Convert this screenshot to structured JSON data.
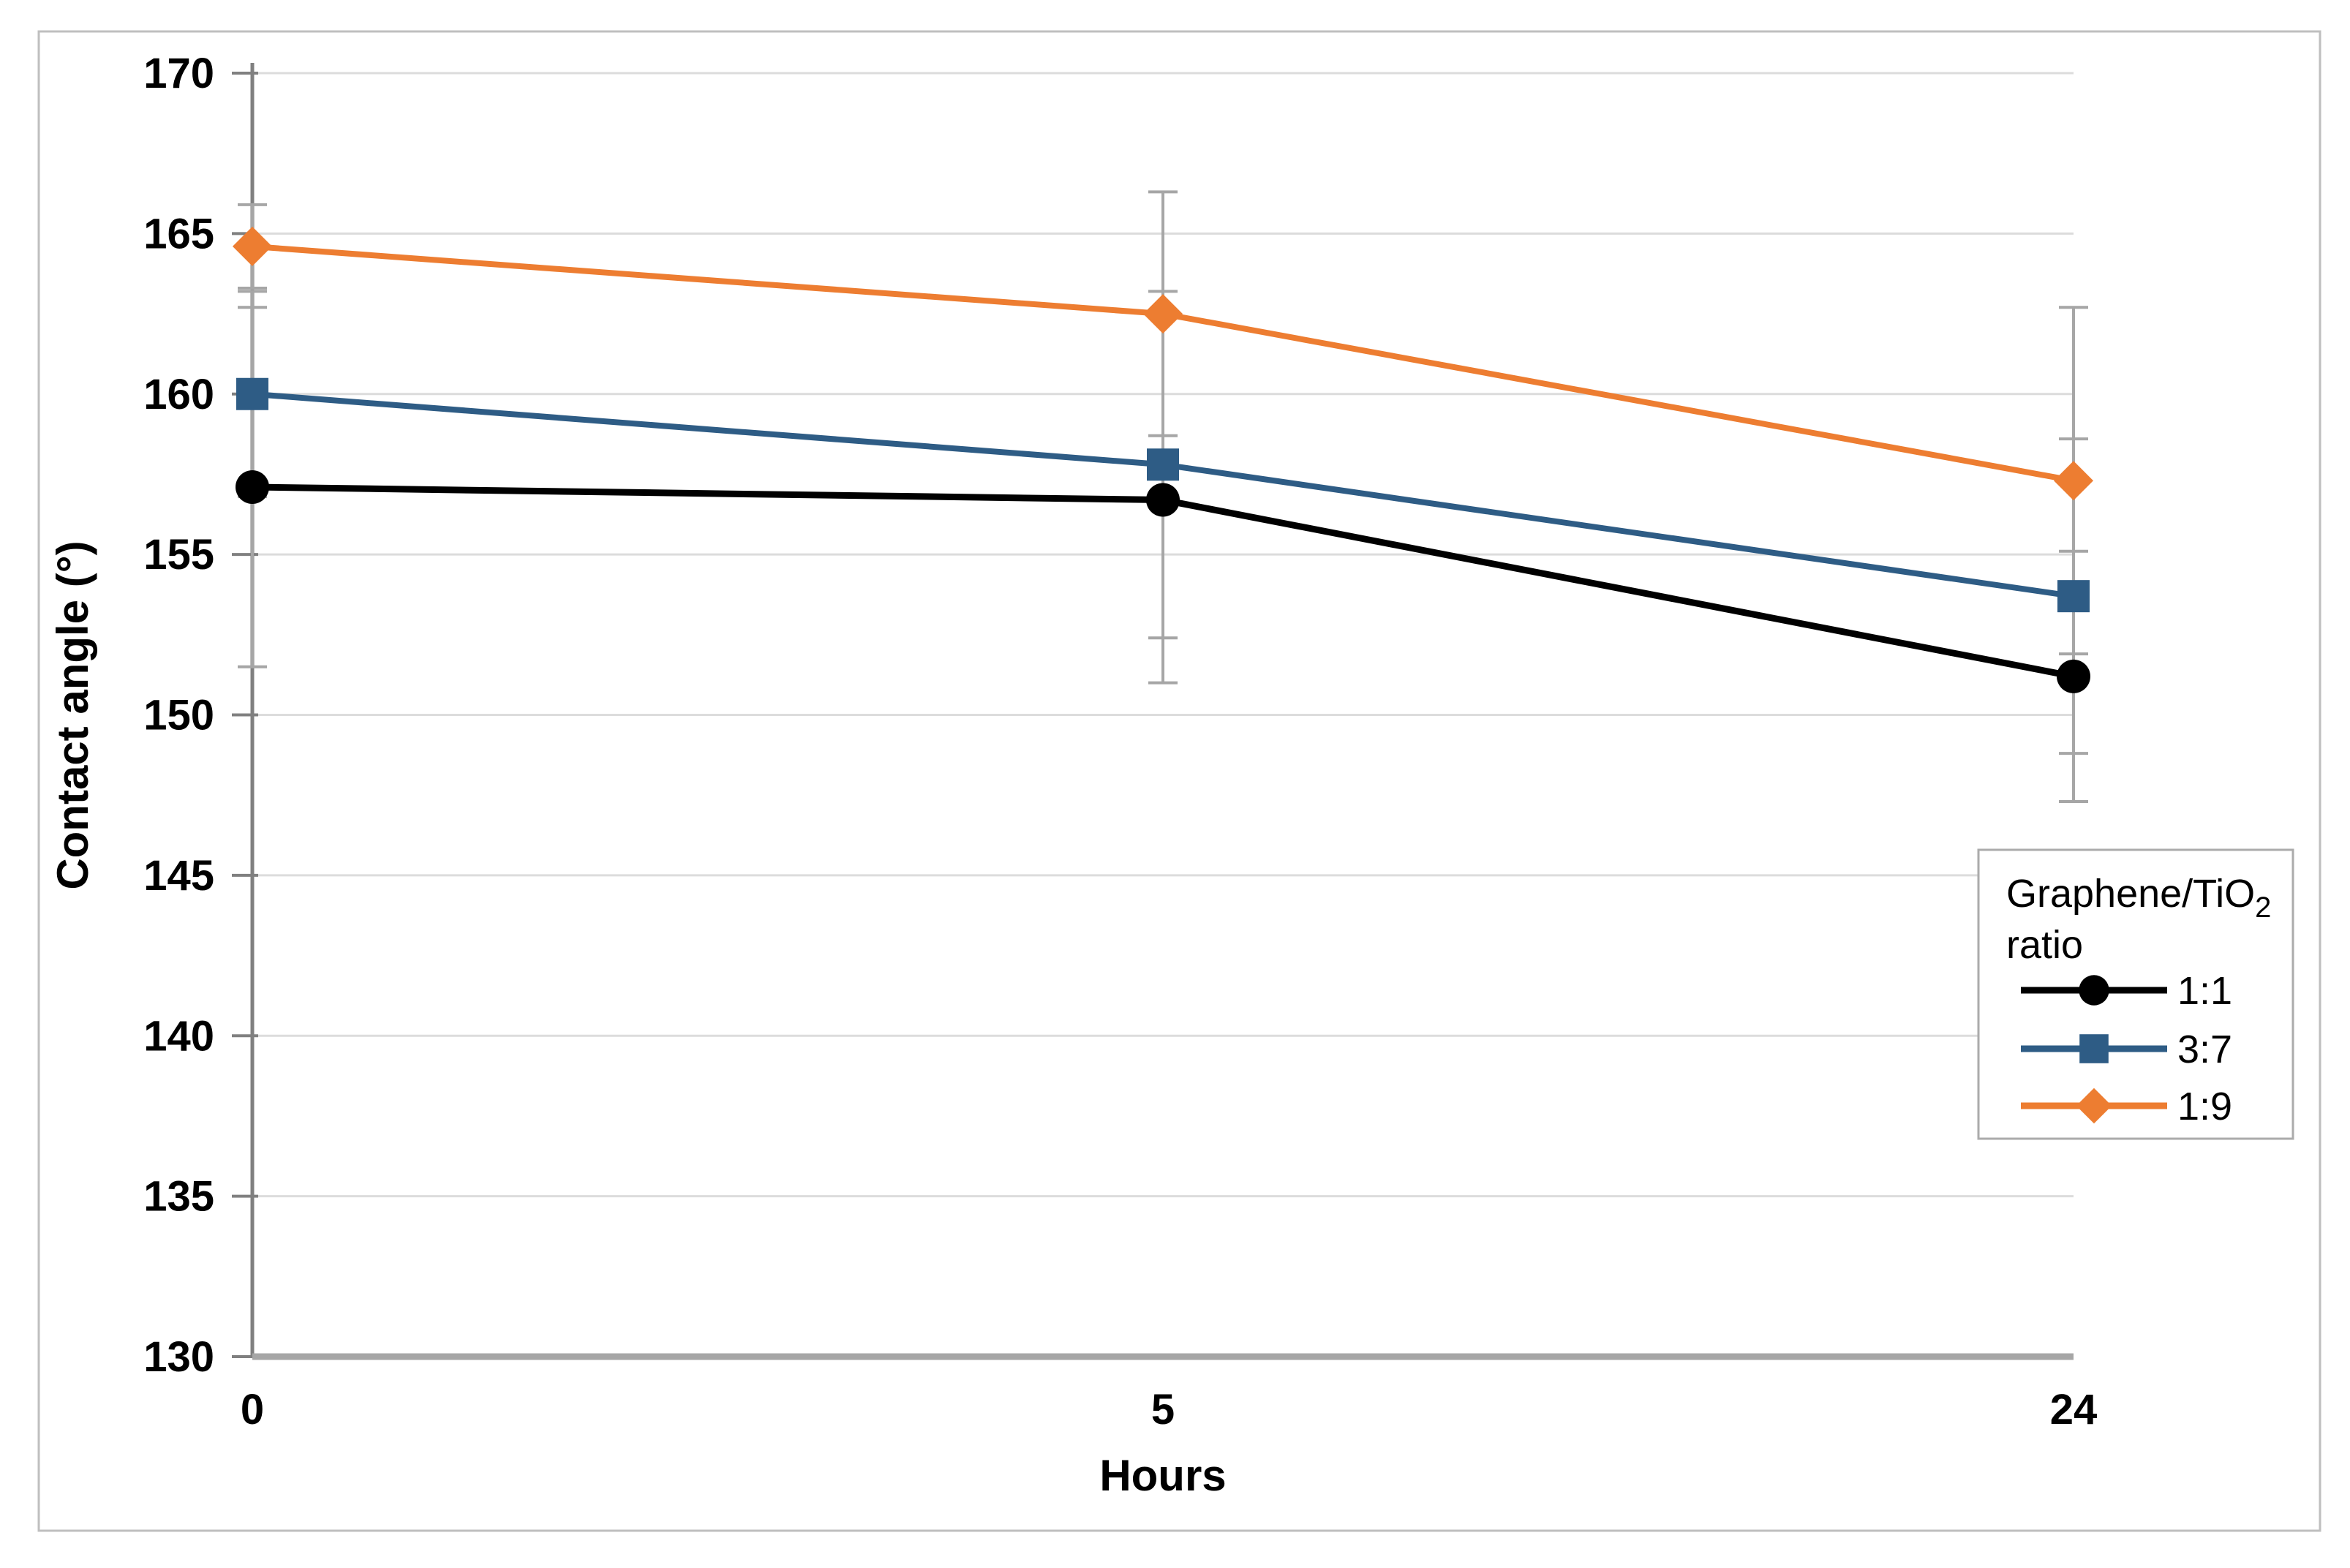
{
  "chart_data": {
    "type": "line",
    "title": "",
    "xlabel": "Hours",
    "ylabel": "Contact angle (°)",
    "x_categories": [
      "0",
      "5",
      "24"
    ],
    "ylim": [
      130,
      170
    ],
    "yticks": [
      130,
      135,
      140,
      145,
      150,
      155,
      160,
      165,
      170
    ],
    "grid": "horizontal",
    "legend": {
      "title_main": "Graphene/TiO",
      "title_sub": "2",
      "title_line2": "ratio",
      "position": "middle-right",
      "entries": [
        "1:1",
        "3:7",
        "1:9"
      ]
    },
    "series": [
      {
        "name": "1:1",
        "marker": "circle",
        "color": "#000000",
        "values": [
          157.1,
          156.7,
          151.2
        ],
        "error_upper": [
          162.7,
          162.4,
          155.1
        ],
        "error_lower": [
          151.5,
          151.0,
          147.3
        ]
      },
      {
        "name": "3:7",
        "marker": "square",
        "color": "#2E5C85",
        "values": [
          160.0,
          157.8,
          153.7
        ],
        "error_upper": [
          163.2,
          163.2,
          158.6
        ],
        "error_lower": [
          156.8,
          152.4,
          148.8
        ]
      },
      {
        "name": "1:9",
        "marker": "diamond",
        "color": "#ED7D31",
        "values": [
          164.6,
          162.5,
          157.3
        ],
        "error_upper": [
          165.9,
          166.3,
          162.7
        ],
        "error_lower": [
          163.3,
          158.7,
          151.9
        ]
      }
    ],
    "colors": {
      "background": "#FFFFFF",
      "figure_border": "#BFBFBF",
      "gridline": "#DCDCDC",
      "axis": "#808080",
      "x_axis_line": "#A6A6A6",
      "error_bar": "#A6A6A6",
      "legend_border": "#ABABAB",
      "text": "#000000"
    }
  }
}
